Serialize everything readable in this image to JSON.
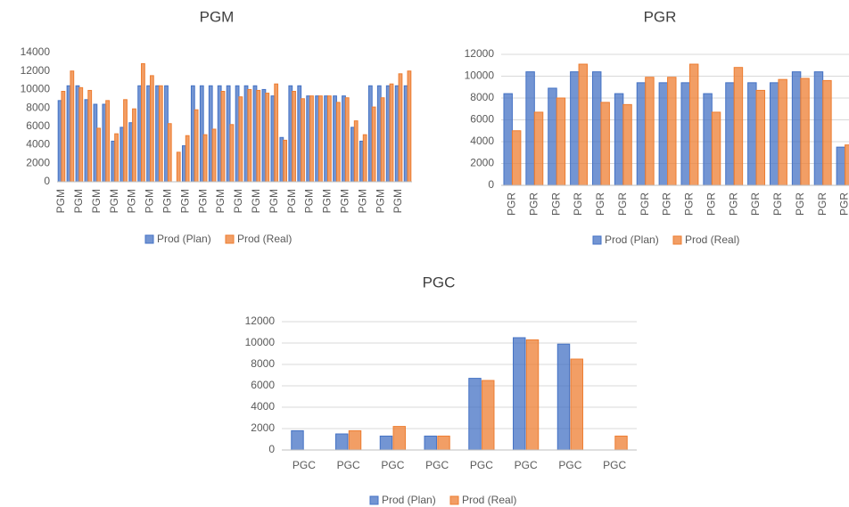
{
  "chart_data": [
    {
      "type": "bar",
      "title": "PGM",
      "categories": [
        "PGM",
        null,
        "PGM",
        null,
        "PGM",
        null,
        "PGM",
        null,
        "PGM",
        null,
        "PGM",
        null,
        "PGM",
        null,
        "PGM",
        null,
        "PGM",
        null,
        "PGM",
        null,
        "PGM",
        null,
        "PGM",
        null,
        "PGM",
        null,
        "PGM",
        null,
        "PGM",
        null,
        "PGM",
        null,
        "PGM",
        null,
        "PGM",
        null,
        "PGM",
        null,
        "PGM",
        null
      ],
      "series": [
        {
          "name": "Prod (Plan)",
          "color": "#4472c4",
          "values": [
            8800,
            10400,
            10400,
            8900,
            8400,
            8400,
            4400,
            5900,
            6400,
            10400,
            10400,
            10400,
            10400,
            0,
            3900,
            10400,
            10400,
            10400,
            10400,
            10400,
            10400,
            10400,
            10400,
            10000,
            9300,
            4800,
            10400,
            10400,
            9300,
            9300,
            9300,
            9300,
            9300,
            5900,
            4400,
            10400,
            10400,
            10400,
            10400,
            10400
          ]
        },
        {
          "name": "Prod (Real)",
          "color": "#ed7d31",
          "values": [
            9800,
            12000,
            10200,
            9900,
            5800,
            8800,
            5200,
            8900,
            7900,
            12800,
            11500,
            10400,
            6300,
            3200,
            5000,
            7800,
            5100,
            5700,
            9800,
            6200,
            9200,
            10000,
            9900,
            9600,
            10600,
            4500,
            9800,
            9000,
            9300,
            9300,
            9300,
            8600,
            9100,
            6600,
            5100,
            8100,
            9100,
            10600,
            11700,
            12000
          ]
        }
      ],
      "ylim": [
        0,
        14000
      ],
      "yticks": [
        0,
        2000,
        4000,
        6000,
        8000,
        10000,
        12000,
        14000
      ],
      "grid": false
    },
    {
      "type": "bar",
      "title": "PGR",
      "categories": [
        "PGR",
        "PGR",
        "PGR",
        "PGR",
        "PGR",
        "PGR",
        "PGR",
        "PGR",
        "PGR",
        "PGR",
        "PGR",
        "PGR",
        "PGR",
        "PGR",
        "PGR",
        "PGR"
      ],
      "series": [
        {
          "name": "Prod (Plan)",
          "color": "#4472c4",
          "values": [
            8400,
            10400,
            8900,
            10400,
            10400,
            8400,
            9400,
            9400,
            9400,
            8400,
            9400,
            9400,
            9400,
            10400,
            10400,
            3500
          ]
        },
        {
          "name": "Prod (Real)",
          "color": "#ed7d31",
          "values": [
            5000,
            6700,
            8000,
            11100,
            7600,
            7400,
            9900,
            9900,
            11100,
            6700,
            10800,
            8700,
            9700,
            9800,
            9600,
            3700
          ]
        }
      ],
      "ylim": [
        0,
        12000
      ],
      "yticks": [
        0,
        2000,
        4000,
        6000,
        8000,
        10000,
        12000
      ],
      "grid": true
    },
    {
      "type": "bar",
      "title": "PGC",
      "categories": [
        "PGC",
        "PGC",
        "PGC",
        "PGC",
        "PGC",
        "PGC",
        "PGC",
        "PGC"
      ],
      "series": [
        {
          "name": "Prod (Plan)",
          "color": "#4472c4",
          "values": [
            1800,
            1500,
            1300,
            1300,
            6700,
            10500,
            9900,
            0
          ]
        },
        {
          "name": "Prod (Real)",
          "color": "#ed7d31",
          "values": [
            0,
            1800,
            2200,
            1300,
            6500,
            10300,
            8500,
            1300
          ]
        }
      ],
      "ylim": [
        0,
        12000
      ],
      "yticks": [
        0,
        2000,
        4000,
        6000,
        8000,
        10000,
        12000
      ],
      "grid": true
    }
  ]
}
